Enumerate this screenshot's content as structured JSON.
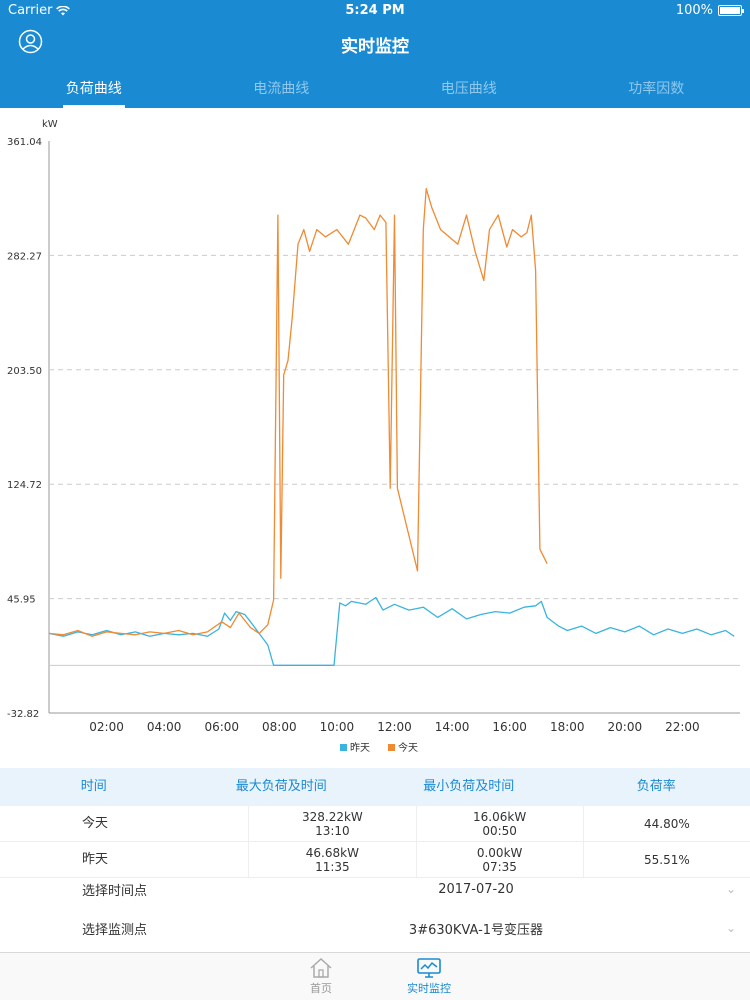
{
  "status_bar": {
    "carrier": "Carrier",
    "time": "5:24 PM",
    "battery": "100%"
  },
  "nav": {
    "title": "实时监控",
    "avatar_icon": "user-circle-icon"
  },
  "tabs": [
    {
      "label": "负荷曲线",
      "active": true
    },
    {
      "label": "电流曲线",
      "active": false
    },
    {
      "label": "电压曲线",
      "active": false
    },
    {
      "label": "功率因数",
      "active": false
    }
  ],
  "chart_data": {
    "type": "line",
    "ylabel": "kW",
    "ylim": [
      -32.82,
      361.04
    ],
    "y_ticks": [
      "361.04",
      "282.27",
      "203.50",
      "124.72",
      "45.95",
      "-32.82"
    ],
    "xlim": [
      0,
      24
    ],
    "x_ticks": [
      "02:00",
      "04:00",
      "06:00",
      "08:00",
      "10:00",
      "12:00",
      "14:00",
      "16:00",
      "18:00",
      "20:00",
      "22:00"
    ],
    "grid": "dashed horizontal",
    "legend_placement": "bottom-center",
    "series": [
      {
        "name": "昨天",
        "color": "#3ab4df",
        "x": [
          0,
          0.5,
          1,
          1.5,
          2,
          2.5,
          3,
          3.5,
          4,
          4.5,
          5,
          5.5,
          5.9,
          6.1,
          6.3,
          6.5,
          6.8,
          7.0,
          7.6,
          7.8,
          9.9,
          10.1,
          10.3,
          10.5,
          11.0,
          11.35,
          11.6,
          12.0,
          12.5,
          13.0,
          13.5,
          14.0,
          14.5,
          15.0,
          15.5,
          16.0,
          16.5,
          16.9,
          17.1,
          17.3,
          17.7,
          18.0,
          18.5,
          19.0,
          19.5,
          20.0,
          20.5,
          21.0,
          21.5,
          22.0,
          22.5,
          23.0,
          23.5,
          23.8
        ],
        "values": [
          22,
          20,
          23,
          21,
          24,
          21,
          23,
          20,
          22,
          21,
          22,
          20,
          25,
          36,
          31,
          37,
          35,
          30,
          14,
          0,
          0,
          43,
          41,
          44,
          42,
          46.68,
          38,
          42,
          38,
          40,
          33,
          39,
          32,
          35,
          37,
          36,
          40,
          41,
          44,
          33,
          27,
          24,
          27,
          22,
          26,
          23,
          27,
          21,
          25,
          22,
          25,
          21,
          24,
          20
        ]
      },
      {
        "name": "今天",
        "color": "#f08a33",
        "x": [
          0,
          0.5,
          1,
          1.5,
          2,
          2.5,
          3,
          3.5,
          4,
          4.5,
          5,
          5.5,
          6,
          6.3,
          6.6,
          7.0,
          7.3,
          7.6,
          7.8,
          7.95,
          8.05,
          8.15,
          8.3,
          8.45,
          8.65,
          8.85,
          9.05,
          9.3,
          9.6,
          10.0,
          10.4,
          10.8,
          11.0,
          11.3,
          11.5,
          11.7,
          11.85,
          12.0,
          12.1,
          12.8,
          13.0,
          13.1,
          13.3,
          13.6,
          13.9,
          14.2,
          14.5,
          14.8,
          15.1,
          15.3,
          15.6,
          15.9,
          16.1,
          16.4,
          16.6,
          16.75,
          16.9,
          17.05,
          17.3
        ],
        "values": [
          22,
          21,
          24,
          20,
          23,
          22,
          21,
          23,
          22,
          24,
          21,
          23,
          30,
          26,
          36,
          26,
          22,
          28,
          45,
          310,
          60,
          200,
          210,
          240,
          290,
          300,
          285,
          300,
          295,
          300,
          290,
          310,
          308,
          300,
          310,
          305,
          122,
          310,
          122,
          65,
          300,
          328.22,
          315,
          300,
          295,
          290,
          310,
          285,
          265,
          300,
          310,
          288,
          300,
          295,
          298,
          310,
          272,
          80,
          70
        ]
      }
    ]
  },
  "table": {
    "headers": [
      "时间",
      "最大负荷及时间",
      "最小负荷及时间",
      "负荷率"
    ],
    "rows": [
      {
        "day": "今天",
        "max_value": "328.22kW",
        "max_time": "13:10",
        "min_value": "16.06kW",
        "min_time": "00:50",
        "rate": "44.80%"
      },
      {
        "day": "昨天",
        "max_value": "46.68kW",
        "max_time": "11:35",
        "min_value": "0.00kW",
        "min_time": "07:35",
        "rate": "55.51%"
      }
    ]
  },
  "selectors": {
    "time_label": "选择时间点",
    "time_value": "2017-07-20",
    "point_label": "选择监测点",
    "point_value": "3#630KVA-1号变压器"
  },
  "tab_bar": {
    "home": {
      "label": "首页",
      "icon": "home-icon"
    },
    "monitor": {
      "label": "实时监控",
      "icon": "monitor-chart-icon"
    }
  }
}
